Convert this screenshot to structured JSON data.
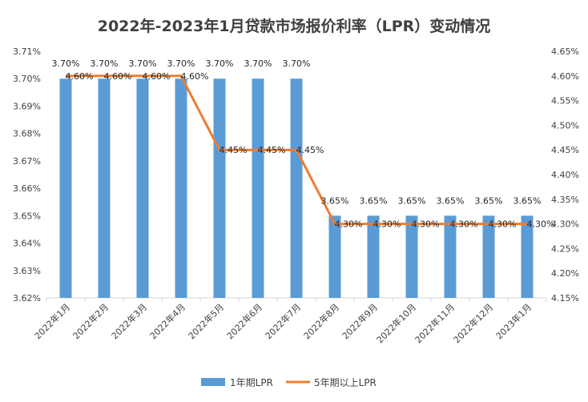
{
  "colors": {
    "bar": "#5B9BD5",
    "line": "#ED7D31",
    "axis_text": "#404040",
    "grid": "#D9D9D9"
  },
  "chart_data": {
    "type": "bar",
    "title": "2022年-2023年1月贷款市场报价利率（LPR）变动情况",
    "categories": [
      "2022年1月",
      "2022年2月",
      "2022年3月",
      "2022年4月",
      "2022年5月",
      "2022年6月",
      "2022年7月",
      "2022年8月",
      "2022年9月",
      "2022年10月",
      "2022年11月",
      "2022年12月",
      "2023年1月"
    ],
    "series": [
      {
        "name": "1年期LPR",
        "type": "bar",
        "axis": "left",
        "values": [
          3.7,
          3.7,
          3.7,
          3.7,
          3.7,
          3.7,
          3.7,
          3.65,
          3.65,
          3.65,
          3.65,
          3.65,
          3.65
        ],
        "labels": [
          "3.70%",
          "3.70%",
          "3.70%",
          "3.70%",
          "3.70%",
          "3.70%",
          "3.70%",
          "3.65%",
          "3.65%",
          "3.65%",
          "3.65%",
          "3.65%",
          "3.65%"
        ]
      },
      {
        "name": "5年期以上LPR",
        "type": "line",
        "axis": "right",
        "values": [
          4.6,
          4.6,
          4.6,
          4.6,
          4.45,
          4.45,
          4.45,
          4.3,
          4.3,
          4.3,
          4.3,
          4.3,
          4.3
        ],
        "labels": [
          "4.60%",
          "4.60%",
          "4.60%",
          "4.60%",
          "4.45%",
          "4.45%",
          "4.45%",
          "4.30%",
          "4.30%",
          "4.30%",
          "4.30%",
          "4.30%",
          "4.30%"
        ]
      }
    ],
    "y_left": {
      "range": [
        3.62,
        3.71
      ],
      "ticks": [
        3.62,
        3.63,
        3.64,
        3.65,
        3.66,
        3.67,
        3.68,
        3.69,
        3.7,
        3.71
      ],
      "tick_labels": [
        "3.62%",
        "3.63%",
        "3.64%",
        "3.65%",
        "3.66%",
        "3.67%",
        "3.68%",
        "3.69%",
        "3.70%",
        "3.71%"
      ]
    },
    "y_right": {
      "range": [
        4.15,
        4.65
      ],
      "ticks": [
        4.15,
        4.2,
        4.25,
        4.3,
        4.35,
        4.4,
        4.45,
        4.5,
        4.55,
        4.6,
        4.65
      ],
      "tick_labels": [
        "4.15%",
        "4.20%",
        "4.25%",
        "4.30%",
        "4.35%",
        "4.40%",
        "4.45%",
        "4.50%",
        "4.55%",
        "4.60%",
        "4.65%"
      ]
    },
    "grid": false,
    "legend": "bottom"
  }
}
